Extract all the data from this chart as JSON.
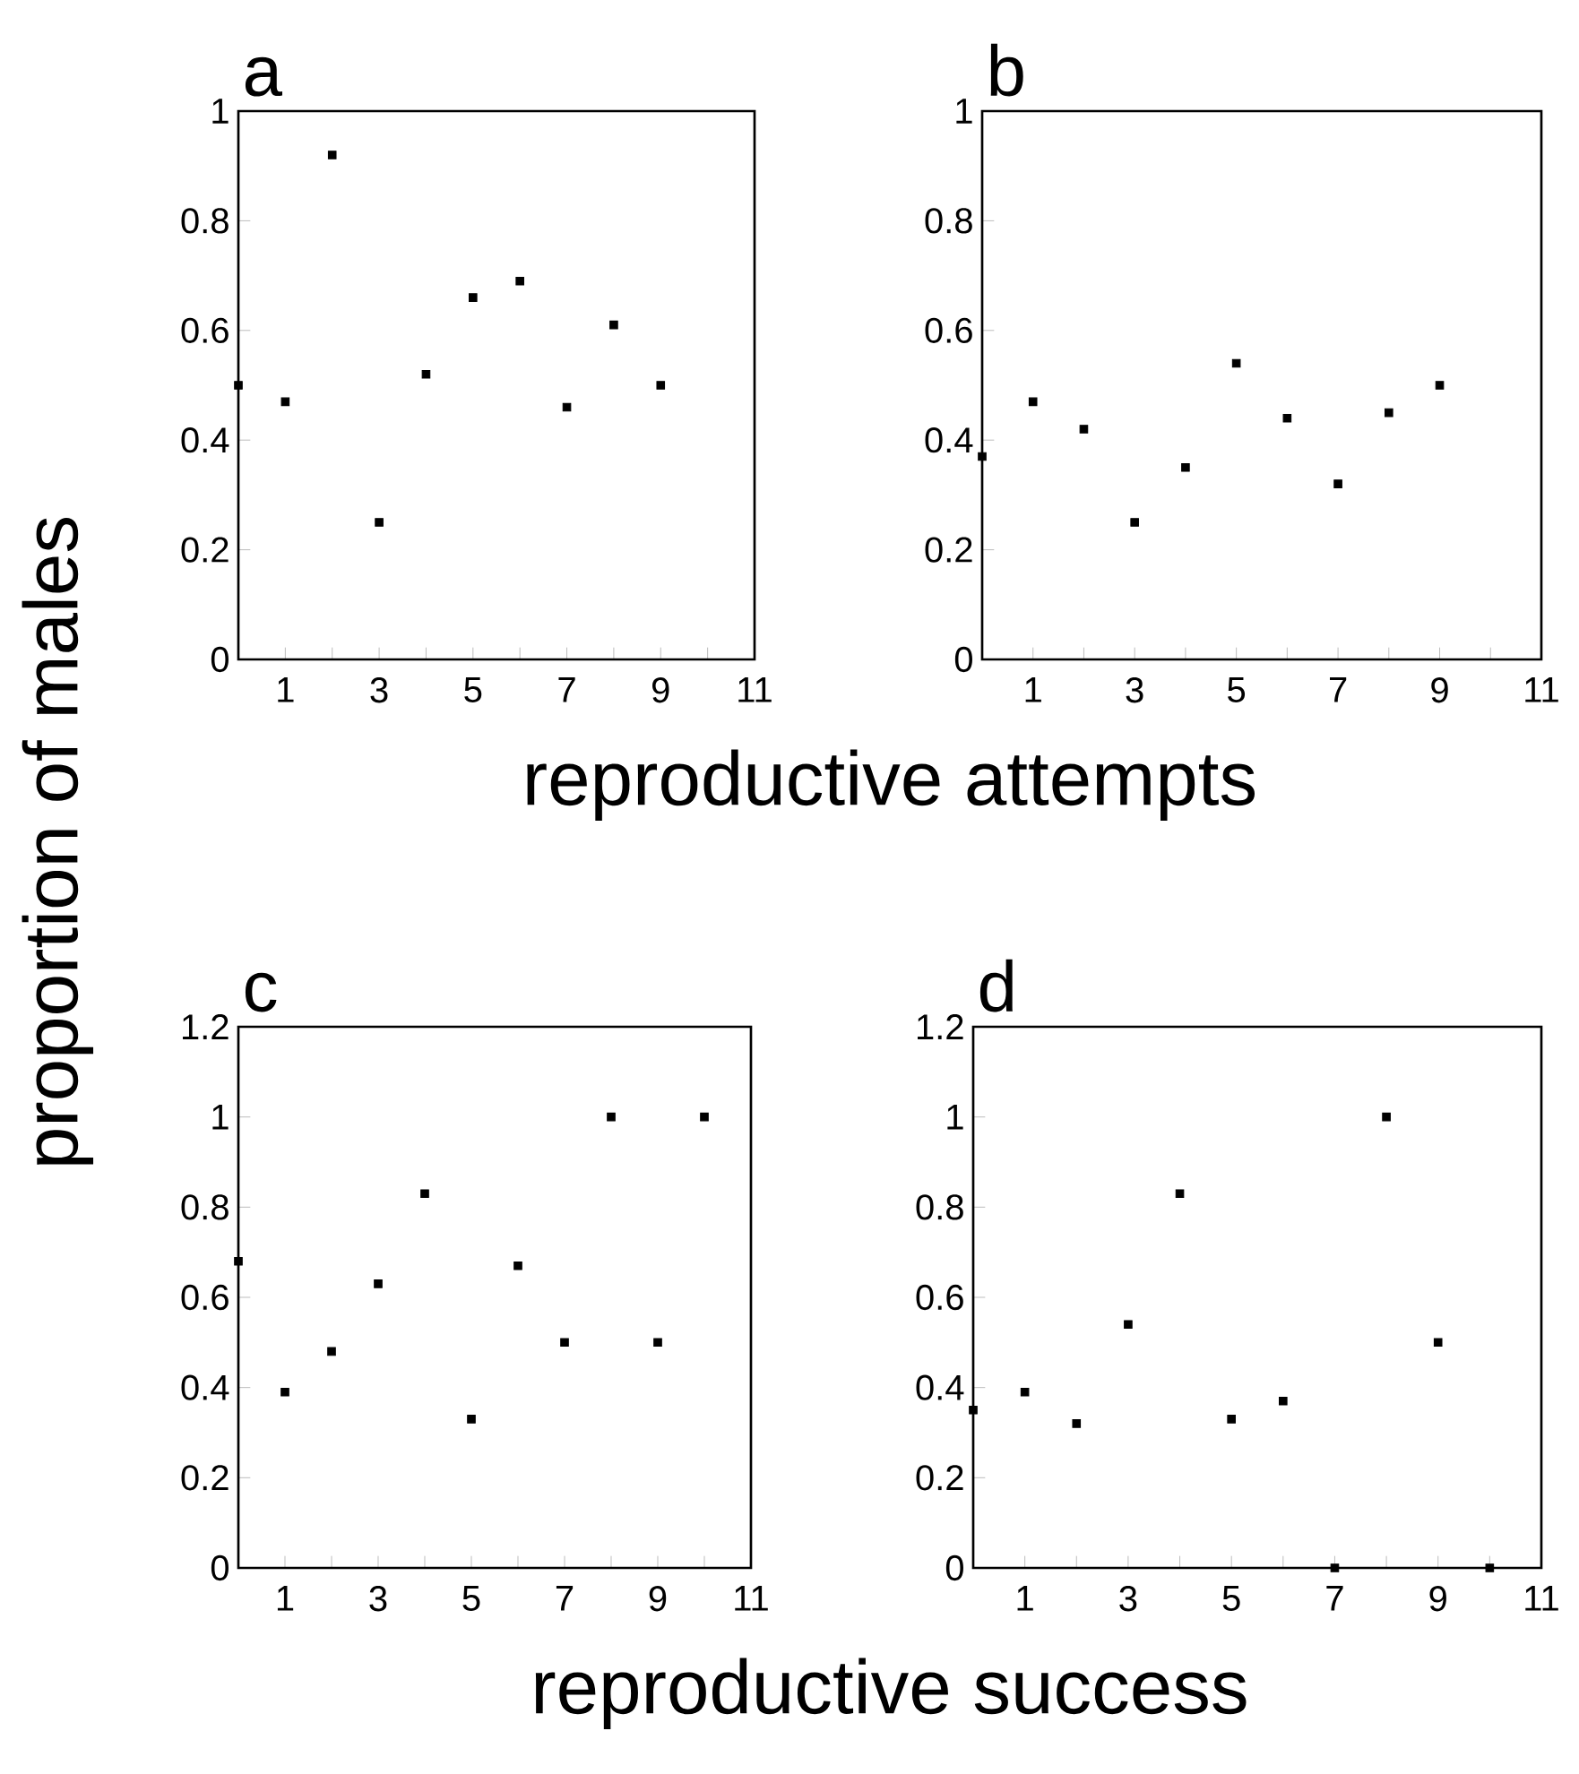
{
  "chart_data": [
    {
      "type": "scatter",
      "title": "a",
      "ylabel": "proportion of males",
      "xlabel": "reproductive attempts",
      "marker": "square",
      "color": "#000000",
      "x": [
        0,
        1,
        2,
        3,
        4,
        5,
        6,
        7,
        8,
        9
      ],
      "values": [
        0.5,
        0.47,
        0.92,
        0.25,
        0.52,
        0.66,
        0.69,
        0.46,
        0.61,
        0.5
      ],
      "xlim": [
        0,
        11
      ],
      "ylim": [
        0,
        1
      ],
      "xticks": [
        1,
        {
          "value": 2,
          "label": null
        },
        3,
        {
          "value": 4,
          "label": null
        },
        5,
        {
          "value": 6,
          "label": null
        },
        7,
        {
          "value": 8,
          "label": null
        },
        9,
        {
          "value": 10,
          "label": null
        },
        11
      ],
      "yticks": [
        0,
        0.2,
        0.4,
        0.6,
        0.8,
        1
      ]
    },
    {
      "type": "scatter",
      "title": "b",
      "marker": "square",
      "color": "#000000",
      "x": [
        0,
        1,
        2,
        3,
        4,
        5,
        6,
        7,
        8,
        9
      ],
      "values": [
        0.37,
        0.47,
        0.42,
        0.25,
        0.35,
        0.54,
        0.44,
        0.32,
        0.45,
        0.5
      ],
      "xlim": [
        0,
        11
      ],
      "ylim": [
        0,
        1
      ],
      "xticks": [
        1,
        {
          "value": 2,
          "label": null
        },
        3,
        {
          "value": 4,
          "label": null
        },
        5,
        {
          "value": 6,
          "label": null
        },
        7,
        {
          "value": 8,
          "label": null
        },
        9,
        {
          "value": 10,
          "label": null
        },
        11
      ],
      "yticks": [
        0,
        0.2,
        0.4,
        0.6,
        0.8,
        1
      ]
    },
    {
      "type": "scatter",
      "title": "c",
      "xlabel": "reproductive success",
      "marker": "square",
      "color": "#000000",
      "x": [
        0,
        1,
        2,
        3,
        4,
        5,
        6,
        7,
        8,
        9,
        10
      ],
      "values": [
        0.68,
        0.39,
        0.48,
        0.63,
        0.83,
        0.33,
        0.67,
        0.5,
        1.0,
        0.5,
        1.0
      ],
      "xlim": [
        0,
        11
      ],
      "ylim": [
        0,
        1.2
      ],
      "xticks": [
        1,
        {
          "value": 2,
          "label": null
        },
        3,
        {
          "value": 4,
          "label": null
        },
        5,
        {
          "value": 6,
          "label": null
        },
        7,
        {
          "value": 8,
          "label": null
        },
        9,
        {
          "value": 10,
          "label": null
        },
        11
      ],
      "yticks": [
        0,
        0.2,
        0.4,
        0.6,
        0.8,
        1,
        1.2
      ]
    },
    {
      "type": "scatter",
      "title": "d",
      "marker": "square",
      "color": "#000000",
      "x": [
        0,
        1,
        2,
        3,
        4,
        5,
        6,
        7,
        8,
        9,
        10
      ],
      "values": [
        0.35,
        0.39,
        0.32,
        0.54,
        0.83,
        0.33,
        0.37,
        0,
        1.0,
        0.5,
        0
      ],
      "xlim": [
        0,
        11
      ],
      "ylim": [
        0,
        1.2
      ],
      "xticks": [
        1,
        {
          "value": 2,
          "label": null
        },
        3,
        {
          "value": 4,
          "label": null
        },
        5,
        {
          "value": 6,
          "label": null
        },
        7,
        {
          "value": 8,
          "label": null
        },
        9,
        {
          "value": 10,
          "label": null
        },
        11
      ],
      "yticks": [
        0,
        0.2,
        0.4,
        0.6,
        0.8,
        1,
        1.2
      ]
    }
  ]
}
